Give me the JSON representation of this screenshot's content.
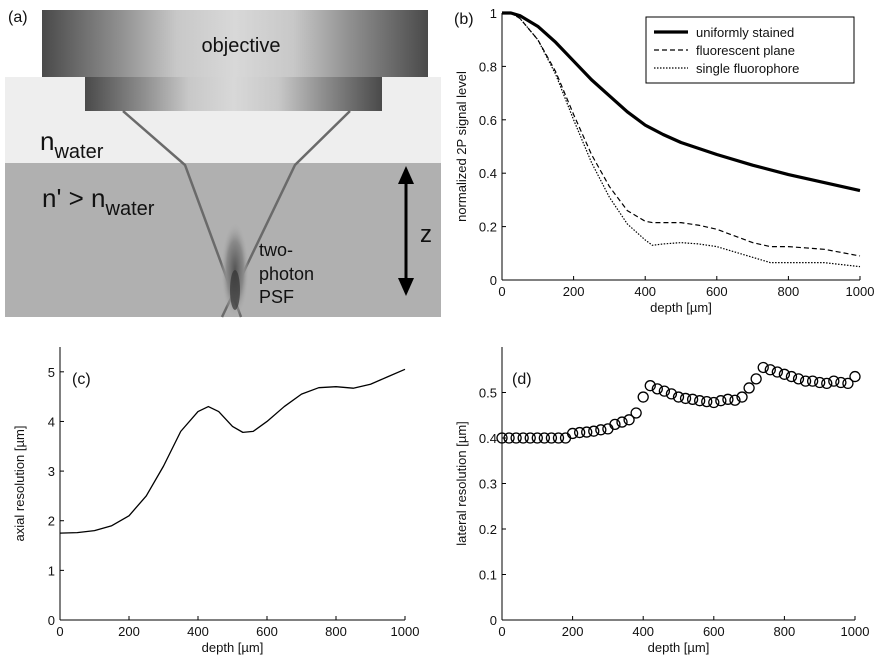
{
  "panel_a": {
    "label": "(a)",
    "objective_label": "objective",
    "n_water_base": "n",
    "n_water_sub": "water",
    "n_prime_text": "n' > n",
    "n_prime_sub": "water",
    "z_label": "z",
    "psf_line1": "two-",
    "psf_line2": "photon",
    "psf_line3": "PSF"
  },
  "chart_data": [
    {
      "panel": "(b)",
      "type": "line",
      "xlabel": "depth [µm]",
      "ylabel": "normalized 2P signal level",
      "xlim": [
        0,
        1000
      ],
      "ylim": [
        0,
        1
      ],
      "xticks": [
        0,
        200,
        400,
        600,
        800,
        1000
      ],
      "yticks": [
        0,
        0.2,
        0.4,
        0.6,
        0.8,
        1
      ],
      "legend_position": "top-right",
      "series": [
        {
          "name": "uniformly stained",
          "style": "solid-thick",
          "x": [
            0,
            25,
            50,
            100,
            150,
            200,
            250,
            300,
            350,
            400,
            450,
            500,
            600,
            700,
            800,
            900,
            1000
          ],
          "y": [
            1.0,
            1.0,
            0.99,
            0.95,
            0.89,
            0.82,
            0.75,
            0.69,
            0.63,
            0.58,
            0.545,
            0.515,
            0.47,
            0.43,
            0.395,
            0.365,
            0.335
          ]
        },
        {
          "name": "fluorescent plane",
          "style": "dashed",
          "x": [
            0,
            25,
            50,
            100,
            150,
            200,
            250,
            300,
            350,
            400,
            420,
            450,
            500,
            550,
            600,
            650,
            700,
            750,
            800,
            850,
            900,
            1000
          ],
          "y": [
            1.0,
            1.0,
            0.98,
            0.9,
            0.78,
            0.62,
            0.47,
            0.35,
            0.26,
            0.22,
            0.215,
            0.215,
            0.215,
            0.205,
            0.19,
            0.165,
            0.14,
            0.125,
            0.125,
            0.12,
            0.115,
            0.09
          ]
        },
        {
          "name": "single fluorophore",
          "style": "dotted",
          "x": [
            0,
            25,
            50,
            100,
            150,
            200,
            250,
            300,
            350,
            400,
            420,
            450,
            500,
            550,
            600,
            650,
            700,
            750,
            800,
            850,
            900,
            1000
          ],
          "y": [
            1.0,
            1.0,
            0.98,
            0.9,
            0.77,
            0.6,
            0.44,
            0.31,
            0.21,
            0.15,
            0.13,
            0.135,
            0.14,
            0.135,
            0.125,
            0.105,
            0.085,
            0.065,
            0.065,
            0.065,
            0.065,
            0.05
          ]
        }
      ]
    },
    {
      "panel": "(c)",
      "type": "line",
      "xlabel": "depth [µm]",
      "ylabel": "axial resolution [µm]",
      "xlim": [
        0,
        1000
      ],
      "ylim": [
        0,
        5.5
      ],
      "xticks": [
        0,
        200,
        400,
        600,
        800,
        1000
      ],
      "yticks": [
        0,
        1,
        2,
        3,
        4,
        5
      ],
      "series": [
        {
          "name": "",
          "x": [
            0,
            50,
            100,
            150,
            200,
            250,
            300,
            350,
            400,
            430,
            460,
            500,
            530,
            560,
            600,
            650,
            700,
            750,
            800,
            850,
            900,
            950,
            1000
          ],
          "y": [
            1.75,
            1.76,
            1.8,
            1.9,
            2.1,
            2.5,
            3.1,
            3.8,
            4.2,
            4.3,
            4.2,
            3.9,
            3.78,
            3.8,
            4.0,
            4.3,
            4.55,
            4.68,
            4.7,
            4.67,
            4.75,
            4.9,
            5.05
          ]
        }
      ]
    },
    {
      "panel": "(d)",
      "type": "scatter",
      "xlabel": "depth [µm]",
      "ylabel": "lateral resolution [µm]",
      "xlim": [
        0,
        1000
      ],
      "ylim": [
        0,
        0.6
      ],
      "xticks": [
        0,
        200,
        400,
        600,
        800,
        1000
      ],
      "yticks": [
        0,
        0.1,
        0.2,
        0.3,
        0.4,
        0.5
      ],
      "series": [
        {
          "name": "",
          "marker": "open-circle",
          "x": [
            0,
            20,
            40,
            60,
            80,
            100,
            120,
            140,
            160,
            180,
            200,
            220,
            240,
            260,
            280,
            300,
            320,
            340,
            360,
            380,
            400,
            420,
            440,
            460,
            480,
            500,
            520,
            540,
            560,
            580,
            600,
            620,
            640,
            660,
            680,
            700,
            720,
            740,
            760,
            780,
            800,
            820,
            840,
            860,
            880,
            900,
            920,
            940,
            960,
            980,
            1000
          ],
          "y": [
            0.4,
            0.4,
            0.4,
            0.4,
            0.4,
            0.4,
            0.4,
            0.4,
            0.4,
            0.4,
            0.41,
            0.412,
            0.413,
            0.415,
            0.418,
            0.42,
            0.43,
            0.435,
            0.44,
            0.455,
            0.49,
            0.515,
            0.508,
            0.503,
            0.497,
            0.49,
            0.487,
            0.485,
            0.482,
            0.48,
            0.478,
            0.482,
            0.485,
            0.483,
            0.49,
            0.51,
            0.53,
            0.555,
            0.55,
            0.545,
            0.54,
            0.535,
            0.53,
            0.525,
            0.525,
            0.522,
            0.52,
            0.525,
            0.522,
            0.52,
            0.535
          ]
        }
      ]
    }
  ]
}
